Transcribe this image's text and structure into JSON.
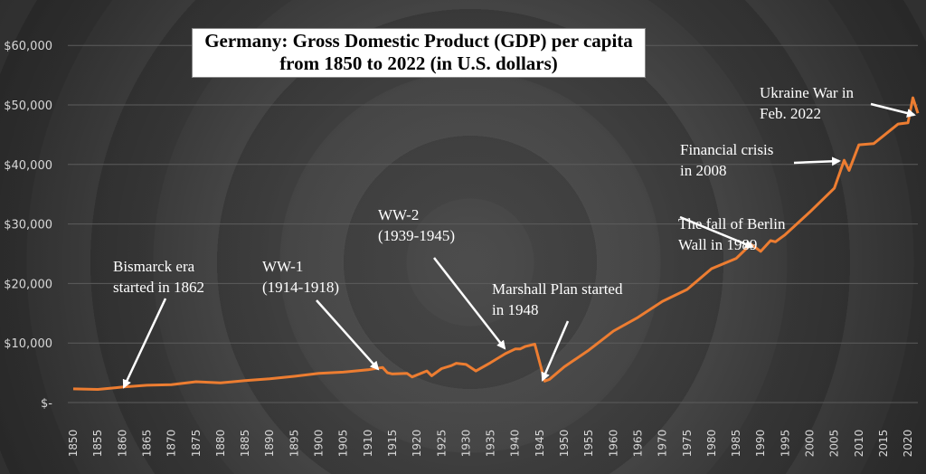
{
  "chart_data": {
    "type": "line",
    "title": "Germany: Gross Domestic Product (GDP) per capita",
    "subtitle": "from 1850 to 2022 (in U.S. dollars)",
    "xlabel": "",
    "ylabel": "",
    "xlim": [
      1850,
      2022
    ],
    "ylim": [
      0,
      60000
    ],
    "grid": true,
    "line_color": "#ed7d31",
    "y_ticks": [
      0,
      10000,
      20000,
      30000,
      40000,
      50000,
      60000
    ],
    "y_tick_labels": [
      "$-",
      "$10,000",
      "$20,000",
      "$30,000",
      "$40,000",
      "$50,000",
      "$60,000"
    ],
    "x_ticks": [
      "1850",
      "1855",
      "1860",
      "1865",
      "1870",
      "1875",
      "1880",
      "1885",
      "1890",
      "1895",
      "1900",
      "1905",
      "1910",
      "1915",
      "1920",
      "1925",
      "1930",
      "1935",
      "1940",
      "1945",
      "1950",
      "1955",
      "1960",
      "1965",
      "1970",
      "1975",
      "1980",
      "1985",
      "1990",
      "1995",
      "2000",
      "2005",
      "2010",
      "2015",
      "2020"
    ],
    "x": [
      1850,
      1855,
      1860,
      1865,
      1870,
      1875,
      1880,
      1885,
      1890,
      1895,
      1900,
      1905,
      1910,
      1913,
      1914,
      1915,
      1918,
      1919,
      1922,
      1923,
      1925,
      1927,
      1928,
      1930,
      1932,
      1935,
      1938,
      1940,
      1941,
      1942,
      1944,
      1946,
      1947,
      1950,
      1955,
      1960,
      1965,
      1970,
      1975,
      1980,
      1985,
      1988,
      1990,
      1992,
      1993,
      1995,
      2000,
      2005,
      2007,
      2008,
      2010,
      2013,
      2015,
      2018,
      2020,
      2021,
      2022
    ],
    "values": [
      2300,
      2200,
      2600,
      2900,
      3000,
      3500,
      3300,
      3700,
      4000,
      4400,
      4900,
      5100,
      5500,
      5900,
      5000,
      4800,
      4900,
      4300,
      5300,
      4500,
      5700,
      6200,
      6600,
      6400,
      5300,
      6700,
      8200,
      9000,
      9000,
      9400,
      9800,
      3600,
      3900,
      6000,
      8800,
      12000,
      14300,
      17000,
      19000,
      22500,
      24200,
      26600,
      25400,
      27200,
      27000,
      28200,
      32000,
      36000,
      40700,
      39000,
      43300,
      43500,
      44800,
      46800,
      47000,
      51200,
      48600
    ],
    "annotations": [
      {
        "lines": [
          "Bismarck era",
          "started in 1862"
        ],
        "year": 1861
      },
      {
        "lines": [
          "WW-1",
          "(1914-1918)"
        ],
        "year": 1913
      },
      {
        "lines": [
          "WW-2",
          "(1939-1945)"
        ],
        "year": 1939
      },
      {
        "lines": [
          "Marshall Plan started",
          "in 1948"
        ],
        "year": 1946
      },
      {
        "lines": [
          "The fall of Berlin",
          "Wall in 1989"
        ],
        "year": 1988
      },
      {
        "lines": [
          "Financial crisis",
          "in 2008"
        ],
        "year": 2007
      },
      {
        "lines": [
          "Ukraine War in",
          "Feb. 2022"
        ],
        "year": 2022
      }
    ]
  }
}
